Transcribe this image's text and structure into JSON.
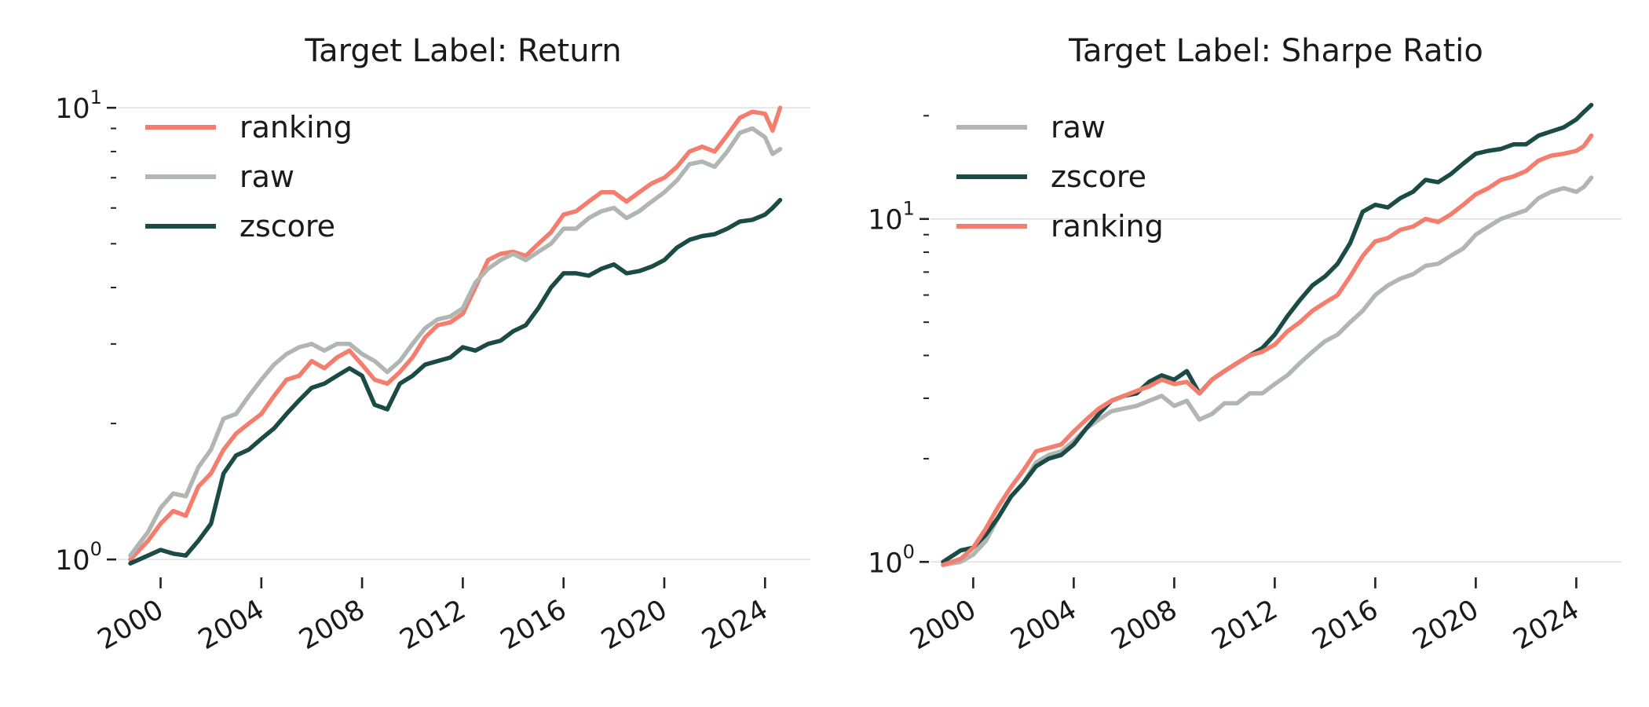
{
  "colors": {
    "ranking": "#f47d6e",
    "raw": "#b0b7b2",
    "zscore": "#1b4b45"
  },
  "chart_data": [
    {
      "type": "line",
      "title": "Target Label: Return",
      "xlabel": "",
      "ylabel": "",
      "yscale": "log",
      "grid": "horizontal at decades",
      "legend_position": "top-left",
      "xlim": [
        1998.3,
        2025.8
      ],
      "ylim": [
        0.95,
        10.5
      ],
      "x_ticks": [
        "2000",
        "2004",
        "2008",
        "2012",
        "2016",
        "2020",
        "2024"
      ],
      "y_ticks": [
        {
          "base": "10",
          "exp": "0"
        },
        {
          "base": "10",
          "exp": "1"
        }
      ],
      "legend": [
        "ranking",
        "raw",
        "zscore"
      ],
      "series": [
        {
          "name": "ranking",
          "color": "#f47d6e",
          "x": [
            1998.8,
            1999.5,
            2000.0,
            2000.5,
            2001.0,
            2001.5,
            2002.0,
            2002.5,
            2003.0,
            2003.5,
            2004.0,
            2004.5,
            2005.0,
            2005.5,
            2006.0,
            2006.5,
            2007.0,
            2007.5,
            2008.0,
            2008.5,
            2009.0,
            2009.5,
            2010.0,
            2010.5,
            2011.0,
            2011.5,
            2012.0,
            2012.5,
            2013.0,
            2013.5,
            2014.0,
            2014.5,
            2015.0,
            2015.5,
            2016.0,
            2016.5,
            2017.0,
            2017.5,
            2018.0,
            2018.5,
            2019.0,
            2019.5,
            2020.0,
            2020.5,
            2021.0,
            2021.5,
            2022.0,
            2022.5,
            2023.0,
            2023.5,
            2024.0,
            2024.3,
            2024.6
          ],
          "values": [
            1.0,
            1.1,
            1.2,
            1.28,
            1.25,
            1.45,
            1.55,
            1.75,
            1.9,
            2.0,
            2.1,
            2.3,
            2.5,
            2.55,
            2.75,
            2.65,
            2.8,
            2.9,
            2.7,
            2.5,
            2.45,
            2.6,
            2.8,
            3.1,
            3.3,
            3.35,
            3.5,
            4.0,
            4.6,
            4.75,
            4.8,
            4.7,
            5.0,
            5.3,
            5.8,
            5.9,
            6.2,
            6.5,
            6.5,
            6.2,
            6.5,
            6.8,
            7.0,
            7.4,
            8.0,
            8.2,
            8.0,
            8.7,
            9.5,
            9.8,
            9.7,
            8.9,
            10.0
          ]
        },
        {
          "name": "raw",
          "color": "#b0b7b2",
          "x": [
            1998.8,
            1999.5,
            2000.0,
            2000.5,
            2001.0,
            2001.5,
            2002.0,
            2002.5,
            2003.0,
            2003.5,
            2004.0,
            2004.5,
            2005.0,
            2005.5,
            2006.0,
            2006.5,
            2007.0,
            2007.5,
            2008.0,
            2008.5,
            2009.0,
            2009.5,
            2010.0,
            2010.5,
            2011.0,
            2011.5,
            2012.0,
            2012.5,
            2013.0,
            2013.5,
            2014.0,
            2014.5,
            2015.0,
            2015.5,
            2016.0,
            2016.5,
            2017.0,
            2017.5,
            2018.0,
            2018.5,
            2019.0,
            2019.5,
            2020.0,
            2020.5,
            2021.0,
            2021.5,
            2022.0,
            2022.5,
            2023.0,
            2023.5,
            2024.0,
            2024.3,
            2024.6
          ],
          "values": [
            1.02,
            1.15,
            1.3,
            1.4,
            1.38,
            1.6,
            1.75,
            2.05,
            2.1,
            2.3,
            2.5,
            2.7,
            2.85,
            2.95,
            3.0,
            2.9,
            3.0,
            3.0,
            2.85,
            2.75,
            2.6,
            2.75,
            3.0,
            3.25,
            3.4,
            3.45,
            3.6,
            4.1,
            4.4,
            4.6,
            4.75,
            4.6,
            4.8,
            5.0,
            5.4,
            5.4,
            5.7,
            5.9,
            6.0,
            5.7,
            5.9,
            6.2,
            6.5,
            6.9,
            7.5,
            7.6,
            7.4,
            8.0,
            8.8,
            9.0,
            8.6,
            7.9,
            8.1
          ]
        },
        {
          "name": "zscore",
          "color": "#1b4b45",
          "x": [
            1998.8,
            1999.5,
            2000.0,
            2000.5,
            2001.0,
            2001.5,
            2002.0,
            2002.5,
            2003.0,
            2003.5,
            2004.0,
            2004.5,
            2005.0,
            2005.5,
            2006.0,
            2006.5,
            2007.0,
            2007.5,
            2008.0,
            2008.5,
            2009.0,
            2009.5,
            2010.0,
            2010.5,
            2011.0,
            2011.5,
            2012.0,
            2012.5,
            2013.0,
            2013.5,
            2014.0,
            2014.5,
            2015.0,
            2015.5,
            2016.0,
            2016.5,
            2017.0,
            2017.5,
            2018.0,
            2018.5,
            2019.0,
            2019.5,
            2020.0,
            2020.5,
            2021.0,
            2021.5,
            2022.0,
            2022.5,
            2023.0,
            2023.5,
            2024.0,
            2024.3,
            2024.6
          ],
          "values": [
            0.98,
            1.02,
            1.05,
            1.03,
            1.02,
            1.1,
            1.2,
            1.55,
            1.7,
            1.75,
            1.85,
            1.95,
            2.1,
            2.25,
            2.4,
            2.45,
            2.55,
            2.65,
            2.55,
            2.2,
            2.15,
            2.45,
            2.55,
            2.7,
            2.75,
            2.8,
            2.95,
            2.9,
            3.0,
            3.05,
            3.2,
            3.3,
            3.6,
            4.0,
            4.3,
            4.3,
            4.25,
            4.4,
            4.5,
            4.3,
            4.35,
            4.45,
            4.6,
            4.9,
            5.1,
            5.2,
            5.25,
            5.4,
            5.6,
            5.65,
            5.8,
            6.0,
            6.25
          ]
        }
      ]
    },
    {
      "type": "line",
      "title": "Target Label: Sharpe Ratio",
      "xlabel": "",
      "ylabel": "",
      "yscale": "log",
      "grid": "horizontal at decades",
      "legend_position": "top-left",
      "xlim": [
        1998.3,
        2025.8
      ],
      "ylim": [
        0.95,
        22.5
      ],
      "x_ticks": [
        "2000",
        "2004",
        "2008",
        "2012",
        "2016",
        "2020",
        "2024"
      ],
      "y_ticks": [
        {
          "base": "10",
          "exp": "0"
        },
        {
          "base": "10",
          "exp": "1"
        }
      ],
      "legend": [
        "raw",
        "zscore",
        "ranking"
      ],
      "series": [
        {
          "name": "raw",
          "color": "#b0b7b2",
          "x": [
            1998.8,
            1999.5,
            2000.0,
            2000.5,
            2001.0,
            2001.5,
            2002.0,
            2002.5,
            2003.0,
            2003.5,
            2004.0,
            2004.5,
            2005.0,
            2005.5,
            2006.0,
            2006.5,
            2007.0,
            2007.5,
            2008.0,
            2008.5,
            2009.0,
            2009.5,
            2010.0,
            2010.5,
            2011.0,
            2011.5,
            2012.0,
            2012.5,
            2013.0,
            2013.5,
            2014.0,
            2014.5,
            2015.0,
            2015.5,
            2016.0,
            2016.5,
            2017.0,
            2017.5,
            2018.0,
            2018.5,
            2019.0,
            2019.5,
            2020.0,
            2020.5,
            2021.0,
            2021.5,
            2022.0,
            2022.5,
            2023.0,
            2023.5,
            2024.0,
            2024.3,
            2024.6
          ],
          "values": [
            0.98,
            1.0,
            1.05,
            1.15,
            1.35,
            1.55,
            1.7,
            1.95,
            2.05,
            2.1,
            2.25,
            2.45,
            2.6,
            2.75,
            2.8,
            2.85,
            2.95,
            3.05,
            2.85,
            2.95,
            2.6,
            2.7,
            2.9,
            2.9,
            3.1,
            3.1,
            3.3,
            3.5,
            3.8,
            4.1,
            4.4,
            4.6,
            5.0,
            5.4,
            6.0,
            6.4,
            6.7,
            6.9,
            7.3,
            7.4,
            7.8,
            8.2,
            9.0,
            9.5,
            10.0,
            10.3,
            10.6,
            11.5,
            12.0,
            12.3,
            12.0,
            12.4,
            13.2
          ]
        },
        {
          "name": "zscore",
          "color": "#1b4b45",
          "x": [
            1998.8,
            1999.5,
            2000.0,
            2000.5,
            2001.0,
            2001.5,
            2002.0,
            2002.5,
            2003.0,
            2003.5,
            2004.0,
            2004.5,
            2005.0,
            2005.5,
            2006.0,
            2006.5,
            2007.0,
            2007.5,
            2008.0,
            2008.5,
            2009.0,
            2009.5,
            2010.0,
            2010.5,
            2011.0,
            2011.5,
            2012.0,
            2012.5,
            2013.0,
            2013.5,
            2014.0,
            2014.5,
            2015.0,
            2015.5,
            2016.0,
            2016.5,
            2017.0,
            2017.5,
            2018.0,
            2018.5,
            2019.0,
            2019.5,
            2020.0,
            2020.5,
            2021.0,
            2021.5,
            2022.0,
            2022.5,
            2023.0,
            2023.5,
            2024.0,
            2024.3,
            2024.6
          ],
          "values": [
            1.0,
            1.08,
            1.1,
            1.2,
            1.35,
            1.55,
            1.7,
            1.9,
            2.0,
            2.05,
            2.2,
            2.45,
            2.7,
            2.95,
            3.05,
            3.1,
            3.35,
            3.5,
            3.4,
            3.6,
            3.1,
            3.4,
            3.6,
            3.8,
            4.0,
            4.2,
            4.6,
            5.2,
            5.8,
            6.4,
            6.8,
            7.4,
            8.5,
            10.5,
            11.0,
            10.8,
            11.5,
            12.0,
            13.0,
            12.8,
            13.5,
            14.5,
            15.5,
            15.8,
            16.0,
            16.5,
            16.5,
            17.5,
            18.0,
            18.5,
            19.5,
            20.5,
            21.5
          ]
        },
        {
          "name": "ranking",
          "color": "#f47d6e",
          "x": [
            1998.8,
            1999.5,
            2000.0,
            2000.5,
            2001.0,
            2001.5,
            2002.0,
            2002.5,
            2003.0,
            2003.5,
            2004.0,
            2004.5,
            2005.0,
            2005.5,
            2006.0,
            2006.5,
            2007.0,
            2007.5,
            2008.0,
            2008.5,
            2009.0,
            2009.5,
            2010.0,
            2010.5,
            2011.0,
            2011.5,
            2012.0,
            2012.5,
            2013.0,
            2013.5,
            2014.0,
            2014.5,
            2015.0,
            2015.5,
            2016.0,
            2016.5,
            2017.0,
            2017.5,
            2018.0,
            2018.5,
            2019.0,
            2019.5,
            2020.0,
            2020.5,
            2021.0,
            2021.5,
            2022.0,
            2022.5,
            2023.0,
            2023.5,
            2024.0,
            2024.3,
            2024.6
          ],
          "values": [
            0.98,
            1.02,
            1.1,
            1.25,
            1.45,
            1.65,
            1.85,
            2.1,
            2.15,
            2.2,
            2.4,
            2.6,
            2.8,
            2.95,
            3.05,
            3.15,
            3.25,
            3.4,
            3.3,
            3.35,
            3.1,
            3.4,
            3.6,
            3.8,
            4.0,
            4.1,
            4.3,
            4.7,
            5.0,
            5.4,
            5.7,
            6.0,
            6.8,
            7.8,
            8.6,
            8.8,
            9.3,
            9.5,
            10.0,
            9.8,
            10.3,
            11.0,
            11.8,
            12.3,
            13.0,
            13.3,
            13.8,
            14.8,
            15.3,
            15.5,
            15.8,
            16.3,
            17.5
          ]
        }
      ]
    }
  ]
}
